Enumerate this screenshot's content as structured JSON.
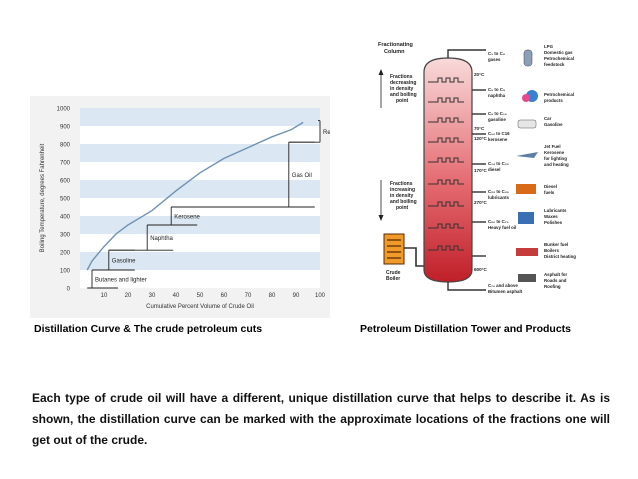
{
  "chart": {
    "ylabel": "Boiling Temperature, degrees Fahrenheit",
    "xlabel": "Cumulative Percent Volume of Crude Oil",
    "fractions": [
      "Residuum",
      "Gas Oil",
      "Kerosene",
      "Naphtha",
      "Gasoline",
      "Butanes and lighter"
    ]
  },
  "chart_data": {
    "type": "line",
    "title": "",
    "xlabel": "Cumulative Percent Volume of Crude Oil",
    "ylabel": "Boiling Temperature, degrees Fahrenheit",
    "x_ticks": [
      10,
      20,
      30,
      40,
      50,
      60,
      70,
      80,
      90,
      100
    ],
    "y_ticks": [
      0,
      100,
      200,
      300,
      400,
      500,
      600,
      700,
      800,
      900,
      1000
    ],
    "xlim": [
      0,
      100
    ],
    "ylim": [
      0,
      1000
    ],
    "series": [
      {
        "x": [
          3,
          5,
          10,
          15,
          20,
          25,
          30,
          40,
          50,
          60,
          70,
          80,
          88,
          93
        ],
        "y": [
          100,
          150,
          230,
          300,
          350,
          390,
          430,
          540,
          640,
          720,
          780,
          840,
          880,
          920
        ]
      }
    ],
    "fraction_ranges": [
      {
        "label": "Butanes and lighter",
        "x": [
          3,
          5
        ],
        "y": [
          0,
          100
        ]
      },
      {
        "label": "Gasoline",
        "x": [
          5,
          12
        ],
        "y": [
          100,
          210
        ]
      },
      {
        "label": "Naphtha",
        "x": [
          12,
          28
        ],
        "y": [
          210,
          350
        ]
      },
      {
        "label": "Kerosene",
        "x": [
          28,
          38
        ],
        "y": [
          350,
          450
        ]
      },
      {
        "label": "Gas Oil",
        "x": [
          38,
          87
        ],
        "y": [
          450,
          810
        ]
      },
      {
        "label": "Residuum",
        "x": [
          87,
          100
        ],
        "y": [
          810,
          930
        ]
      }
    ]
  },
  "tower": {
    "title": "Fractionating Column",
    "left_top_label": "Fractions decreasing in density and boiling point",
    "left_bottom_label": "Fractions increasing in density and boiling point",
    "boiler_label": "Crude Boiler",
    "temps": [
      "20°C",
      "70°C",
      "120°C",
      "170°C",
      "270°C",
      "600°C"
    ],
    "cuts": [
      "C1 to C4 gases",
      "C5 to C9 naphtha",
      "C5 to C10 gasoline",
      "C10 to C16 kerosene",
      "C14 to C20 diesel",
      "C20 to C50 lubricants",
      "C20 to C70 Heavy fuel oil",
      "C70 and above Bitumen asphalt"
    ],
    "products": [
      "LPG Domestic gas Petrochemical feedstock",
      "Petrochemical products",
      "Car Gasoline",
      "Jet Fuel Kerosene for lighting and heating",
      "Diesel fuels",
      "Lubricants Waxes Polishes",
      "Bunker fuel Boilers District heating",
      "Asphalt for Roads and Roofing"
    ]
  },
  "captions": {
    "left": "Distillation Curve & The crude petroleum cuts",
    "right": "Petroleum Distillation Tower and Products"
  },
  "body_text": "Each type of crude oil will have a different, unique distillation curve that helps to describe it. As is shown, the distillation curve can be marked with the approximate locations of the fractions one will get out of the crude.",
  "colors": {
    "band": "#dbe7f2",
    "curve": "#6f93b4",
    "tower_top": "#f6d0d0",
    "tower_bottom": "#c3222b"
  }
}
